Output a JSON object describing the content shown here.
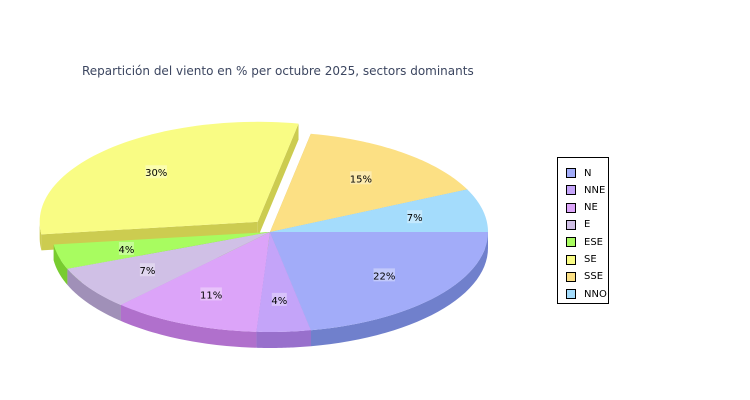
{
  "chart_data": {
    "type": "pie",
    "title": "Repartición del viento en % per octubre 2025, sectors dominants",
    "categories": [
      "N",
      "NNE",
      "NE",
      "E",
      "ESE",
      "SE",
      "SSE",
      "NNO"
    ],
    "values": [
      22,
      4,
      11,
      7,
      4,
      30,
      15,
      7
    ],
    "labels": [
      "22%",
      "4%",
      "11%",
      "7%",
      "4%",
      "30%",
      "15%",
      "7%"
    ],
    "colors": [
      "#a2acf9",
      "#c4a4f9",
      "#dca4f9",
      "#d0c0e6",
      "#a8fc60",
      "#f9fc84",
      "#fce084",
      "#a4dcfc"
    ],
    "side_colors": [
      "#7080cc",
      "#9870cc",
      "#b070cc",
      "#a090b8",
      "#78cc30",
      "#cccc50",
      "#ccb060",
      "#70b0cc"
    ],
    "exploded": [
      "SE"
    ],
    "legend_position": "right"
  }
}
